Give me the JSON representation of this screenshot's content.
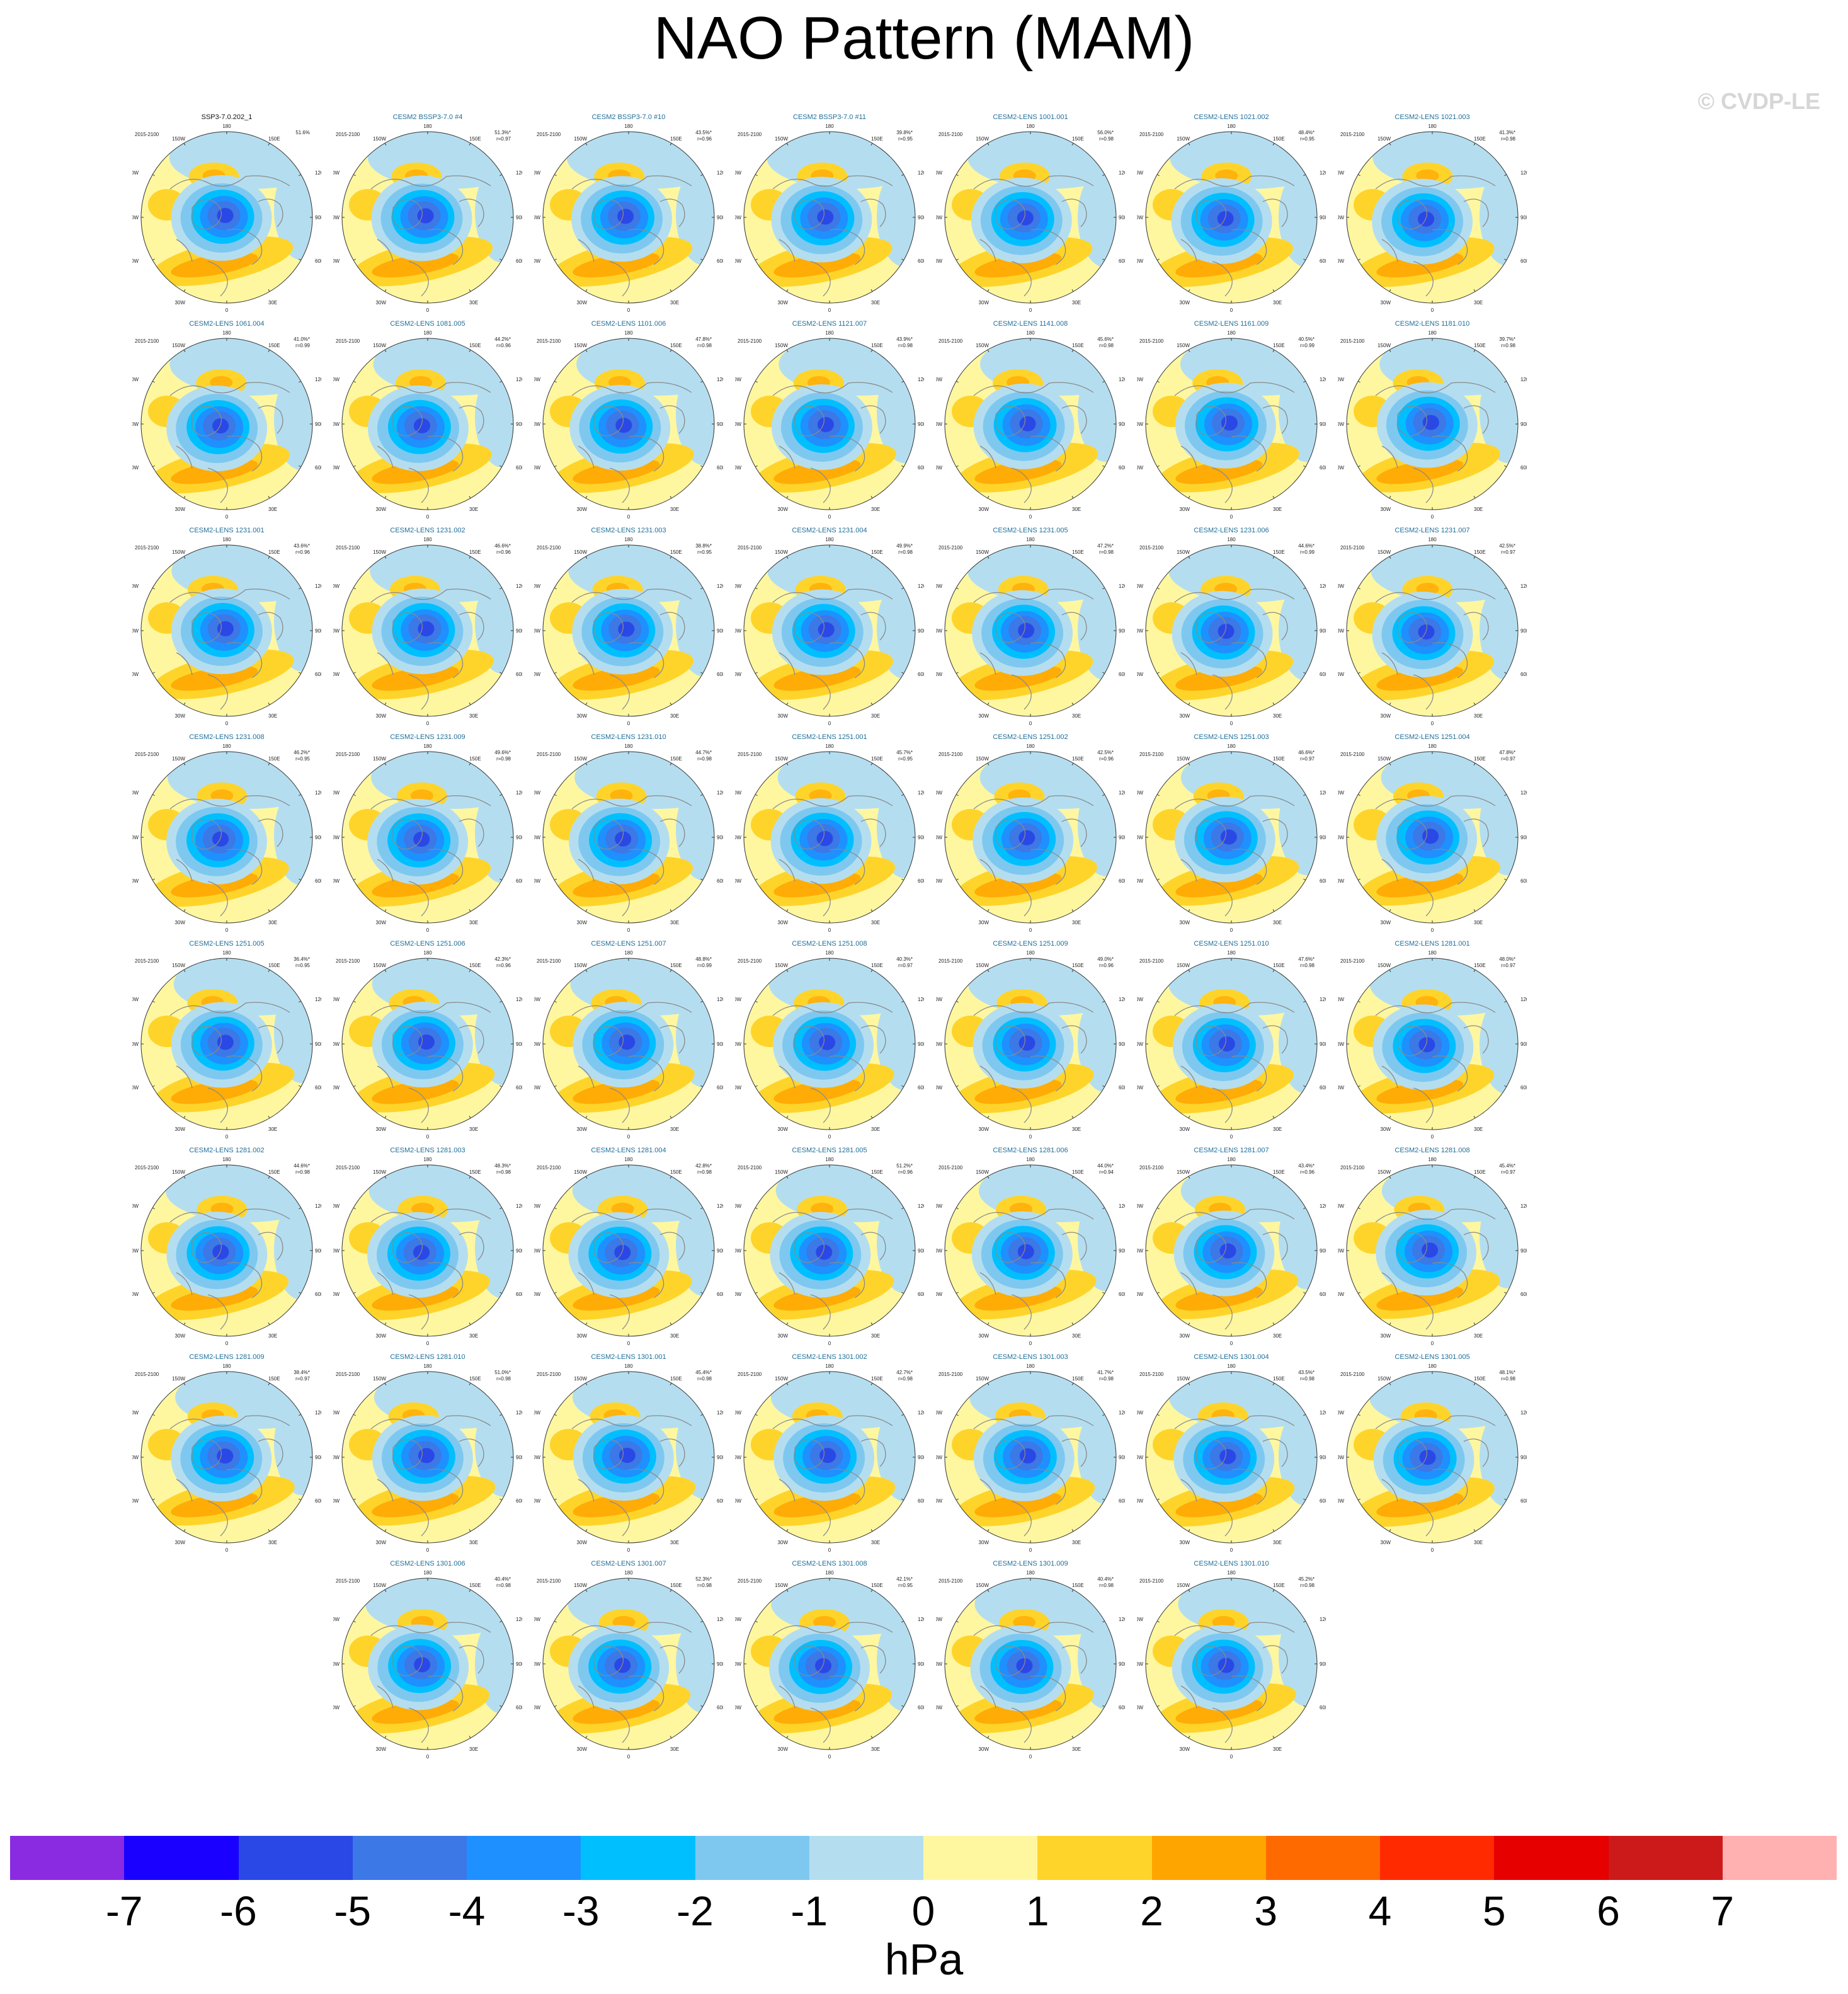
{
  "title": "NAO Pattern (MAM)",
  "watermark": "© CVDP-LE",
  "panels": [
    {
      "title": "SSP3-7.0.202_1",
      "period": "2015-2100",
      "pct": "51.6%",
      "r": ""
    },
    {
      "title": "CESM2 BSSP3-7.0 #4",
      "period": "2015-2100",
      "pct": "51.3%*",
      "r": "r=0.97"
    },
    {
      "title": "CESM2 BSSP3-7.0 #10",
      "period": "2015-2100",
      "pct": "43.5%*",
      "r": "r=0.96"
    },
    {
      "title": "CESM2 BSSP3-7.0 #11",
      "period": "2015-2100",
      "pct": "39.8%*",
      "r": "r=0.95"
    },
    {
      "title": "CESM2-LENS 1001.001",
      "period": "2015-2100",
      "pct": "56.0%*",
      "r": "r=0.98"
    },
    {
      "title": "CESM2-LENS 1021.002",
      "period": "2015-2100",
      "pct": "48.4%*",
      "r": "r=0.95"
    },
    {
      "title": "CESM2-LENS 1021.003",
      "period": "2015-2100",
      "pct": "41.3%*",
      "r": "r=0.98"
    },
    {
      "title": "CESM2-LENS 1061.004",
      "period": "2015-2100",
      "pct": "41.0%*",
      "r": "r=0.99"
    },
    {
      "title": "CESM2-LENS 1081.005",
      "period": "2015-2100",
      "pct": "44.2%*",
      "r": "r=0.96"
    },
    {
      "title": "CESM2-LENS 1101.006",
      "period": "2015-2100",
      "pct": "47.8%*",
      "r": "r=0.98"
    },
    {
      "title": "CESM2-LENS 1121.007",
      "period": "2015-2100",
      "pct": "43.9%*",
      "r": "r=0.98"
    },
    {
      "title": "CESM2-LENS 1141.008",
      "period": "2015-2100",
      "pct": "45.6%*",
      "r": "r=0.98"
    },
    {
      "title": "CESM2-LENS 1161.009",
      "period": "2015-2100",
      "pct": "40.5%*",
      "r": "r=0.99"
    },
    {
      "title": "CESM2-LENS 1181.010",
      "period": "2015-2100",
      "pct": "39.7%*",
      "r": "r=0.98"
    },
    {
      "title": "CESM2-LENS 1231.001",
      "period": "2015-2100",
      "pct": "43.6%*",
      "r": "r=0.96"
    },
    {
      "title": "CESM2-LENS 1231.002",
      "period": "2015-2100",
      "pct": "46.6%*",
      "r": "r=0.96"
    },
    {
      "title": "CESM2-LENS 1231.003",
      "period": "2015-2100",
      "pct": "38.8%*",
      "r": "r=0.95"
    },
    {
      "title": "CESM2-LENS 1231.004",
      "period": "2015-2100",
      "pct": "49.9%*",
      "r": "r=0.98"
    },
    {
      "title": "CESM2-LENS 1231.005",
      "period": "2015-2100",
      "pct": "47.2%*",
      "r": "r=0.98"
    },
    {
      "title": "CESM2-LENS 1231.006",
      "period": "2015-2100",
      "pct": "44.6%*",
      "r": "r=0.99"
    },
    {
      "title": "CESM2-LENS 1231.007",
      "period": "2015-2100",
      "pct": "42.5%*",
      "r": "r=0.97"
    },
    {
      "title": "CESM2-LENS 1231.008",
      "period": "2015-2100",
      "pct": "46.2%*",
      "r": "r=0.95"
    },
    {
      "title": "CESM2-LENS 1231.009",
      "period": "2015-2100",
      "pct": "49.6%*",
      "r": "r=0.98"
    },
    {
      "title": "CESM2-LENS 1231.010",
      "period": "2015-2100",
      "pct": "44.7%*",
      "r": "r=0.98"
    },
    {
      "title": "CESM2-LENS 1251.001",
      "period": "2015-2100",
      "pct": "45.7%*",
      "r": "r=0.95"
    },
    {
      "title": "CESM2-LENS 1251.002",
      "period": "2015-2100",
      "pct": "42.5%*",
      "r": "r=0.96"
    },
    {
      "title": "CESM2-LENS 1251.003",
      "period": "2015-2100",
      "pct": "46.6%*",
      "r": "r=0.97"
    },
    {
      "title": "CESM2-LENS 1251.004",
      "period": "2015-2100",
      "pct": "47.8%*",
      "r": "r=0.97"
    },
    {
      "title": "CESM2-LENS 1251.005",
      "period": "2015-2100",
      "pct": "36.4%*",
      "r": "r=0.95"
    },
    {
      "title": "CESM2-LENS 1251.006",
      "period": "2015-2100",
      "pct": "42.3%*",
      "r": "r=0.96"
    },
    {
      "title": "CESM2-LENS 1251.007",
      "period": "2015-2100",
      "pct": "48.8%*",
      "r": "r=0.99"
    },
    {
      "title": "CESM2-LENS 1251.008",
      "period": "2015-2100",
      "pct": "40.3%*",
      "r": "r=0.97"
    },
    {
      "title": "CESM2-LENS 1251.009",
      "period": "2015-2100",
      "pct": "49.0%*",
      "r": "r=0.96"
    },
    {
      "title": "CESM2-LENS 1251.010",
      "period": "2015-2100",
      "pct": "47.6%*",
      "r": "r=0.98"
    },
    {
      "title": "CESM2-LENS 1281.001",
      "period": "2015-2100",
      "pct": "48.0%*",
      "r": "r=0.97"
    },
    {
      "title": "CESM2-LENS 1281.002",
      "period": "2015-2100",
      "pct": "44.6%*",
      "r": "r=0.98"
    },
    {
      "title": "CESM2-LENS 1281.003",
      "period": "2015-2100",
      "pct": "48.3%*",
      "r": "r=0.98"
    },
    {
      "title": "CESM2-LENS 1281.004",
      "period": "2015-2100",
      "pct": "42.8%*",
      "r": "r=0.98"
    },
    {
      "title": "CESM2-LENS 1281.005",
      "period": "2015-2100",
      "pct": "51.2%*",
      "r": "r=0.96"
    },
    {
      "title": "CESM2-LENS 1281.006",
      "period": "2015-2100",
      "pct": "44.0%*",
      "r": "r=0.94"
    },
    {
      "title": "CESM2-LENS 1281.007",
      "period": "2015-2100",
      "pct": "43.4%*",
      "r": "r=0.96"
    },
    {
      "title": "CESM2-LENS 1281.008",
      "period": "2015-2100",
      "pct": "45.4%*",
      "r": "r=0.97"
    },
    {
      "title": "CESM2-LENS 1281.009",
      "period": "2015-2100",
      "pct": "38.4%*",
      "r": "r=0.97"
    },
    {
      "title": "CESM2-LENS 1281.010",
      "period": "2015-2100",
      "pct": "51.0%*",
      "r": "r=0.98"
    },
    {
      "title": "CESM2-LENS 1301.001",
      "period": "2015-2100",
      "pct": "45.4%*",
      "r": "r=0.98"
    },
    {
      "title": "CESM2-LENS 1301.002",
      "period": "2015-2100",
      "pct": "42.7%*",
      "r": "r=0.98"
    },
    {
      "title": "CESM2-LENS 1301.003",
      "period": "2015-2100",
      "pct": "41.7%*",
      "r": "r=0.98"
    },
    {
      "title": "CESM2-LENS 1301.004",
      "period": "2015-2100",
      "pct": "43.5%*",
      "r": "r=0.98"
    },
    {
      "title": "CESM2-LENS 1301.005",
      "period": "2015-2100",
      "pct": "48.1%*",
      "r": "r=0.98"
    },
    {
      "title": "CESM2-LENS 1301.006",
      "period": "2015-2100",
      "pct": "40.4%*",
      "r": "r=0.98"
    },
    {
      "title": "CESM2-LENS 1301.007",
      "period": "2015-2100",
      "pct": "52.3%*",
      "r": "r=0.98"
    },
    {
      "title": "CESM2-LENS 1301.008",
      "period": "2015-2100",
      "pct": "42.1%*",
      "r": "r=0.95"
    },
    {
      "title": "CESM2-LENS 1301.009",
      "period": "2015-2100",
      "pct": "40.4%*",
      "r": "r=0.98"
    },
    {
      "title": "CESM2-LENS 1301.010",
      "period": "2015-2100",
      "pct": "45.2%*",
      "r": "r=0.98"
    }
  ],
  "map_labels": {
    "top": "180",
    "top_left": "150W",
    "top_right": "150E",
    "upper_left": "120W",
    "upper_right": "120E",
    "left": "90W",
    "right": "90E",
    "lower_left": "60W",
    "lower_right": "60E",
    "bottom_left": "30W",
    "bottom_right": "30E",
    "bottom": "0"
  },
  "colorbar": {
    "units": "hPa",
    "colors": [
      "#8a2be2",
      "#1a00ff",
      "#2a48e6",
      "#3c78e6",
      "#1e90ff",
      "#00bfff",
      "#7ec8f0",
      "#b4def0",
      "#fff7a0",
      "#ffd42a",
      "#ffa500",
      "#ff6a00",
      "#ff2a00",
      "#e60000",
      "#cc1a1a",
      "#ffb0b0"
    ],
    "labels": [
      "-7",
      "-6",
      "-5",
      "-4",
      "-3",
      "-2",
      "-1",
      "0",
      "1",
      "2",
      "3",
      "4",
      "5",
      "6",
      "7"
    ]
  },
  "chart_data": {
    "type": "heatmap",
    "title": "NAO Pattern (MAM)",
    "description_units": "hPa",
    "colorbar_levels": [
      -7,
      -6,
      -5,
      -4,
      -3,
      -2,
      -1,
      0,
      1,
      2,
      3,
      4,
      5,
      6,
      7
    ],
    "panel_count": 54,
    "projection": "polar stereographic, Northern Hemisphere"
  }
}
